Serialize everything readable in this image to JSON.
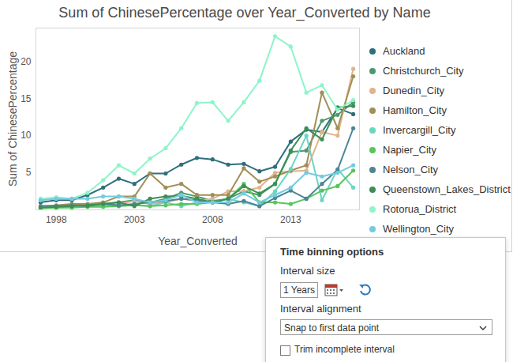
{
  "chart_data": {
    "type": "line",
    "title": "Sum of ChinesePercentage over Year_Converted by Name",
    "x_label": "Year_Converted",
    "y_label": "Sum of ChinesePercentage",
    "x": [
      1997,
      1998,
      1999,
      2000,
      2001,
      2002,
      2003,
      2004,
      2005,
      2006,
      2007,
      2008,
      2009,
      2010,
      2011,
      2012,
      2013,
      2014,
      2015,
      2016,
      2017
    ],
    "xlim": [
      1996.7,
      2017.4
    ],
    "xticks": [
      1998,
      2003,
      2008,
      2013
    ],
    "ylim": [
      0,
      24.5
    ],
    "yticks": [
      5,
      10,
      15,
      20
    ],
    "grid": false,
    "legend": "right",
    "marker": "circle",
    "series": [
      {
        "name": "Auckland",
        "color": "#2f6f7d",
        "values": [
          1.0,
          1.3,
          1.3,
          2.0,
          3.0,
          4.2,
          3.5,
          4.9,
          4.9,
          6.1,
          7.0,
          6.8,
          6.1,
          6.2,
          5.2,
          5.8,
          9.2,
          10.8,
          10.5,
          13.7,
          12.9
        ]
      },
      {
        "name": "Christchurch_City",
        "color": "#4b9a6e",
        "values": [
          0.3,
          0.5,
          0.5,
          0.7,
          0.8,
          1.0,
          1.3,
          1.0,
          1.5,
          2.3,
          1.8,
          1.2,
          1.5,
          2.5,
          2.0,
          3.5,
          7.8,
          8.0,
          12.0,
          12.8,
          14.5
        ]
      },
      {
        "name": "Dunedin_City",
        "color": "#e0b48c",
        "values": [
          0.3,
          0.3,
          0.5,
          0.6,
          0.5,
          0.8,
          1.2,
          0.8,
          1.0,
          1.5,
          1.2,
          1.5,
          2.5,
          2.5,
          3.0,
          5.0,
          5.2,
          5.3,
          10.5,
          10.0,
          19.0
        ]
      },
      {
        "name": "Hamilton_City",
        "color": "#a18f57",
        "values": [
          0.5,
          0.6,
          0.8,
          0.8,
          1.0,
          1.8,
          1.8,
          4.9,
          3.0,
          3.5,
          2.0,
          2.0,
          2.0,
          5.6,
          3.8,
          4.5,
          5.3,
          6.0,
          15.8,
          11.0,
          18.0
        ]
      },
      {
        "name": "Invercargill_City",
        "color": "#6ad6c2",
        "values": [
          0.3,
          0.3,
          0.4,
          0.5,
          0.5,
          0.5,
          0.7,
          0.5,
          1.0,
          0.5,
          1.0,
          1.0,
          1.5,
          1.0,
          0.5,
          2.5,
          5.5,
          10.0,
          1.3,
          5.5,
          3.0
        ]
      },
      {
        "name": "Napier_City",
        "color": "#57c55c",
        "values": [
          0.2,
          0.3,
          0.3,
          0.4,
          0.4,
          0.5,
          0.6,
          0.5,
          0.6,
          0.8,
          0.8,
          1.0,
          1.5,
          3.5,
          1.0,
          1.0,
          0.8,
          1.5,
          2.6,
          3.2,
          5.3
        ]
      },
      {
        "name": "Nelson_City",
        "color": "#4c8596",
        "values": [
          0.5,
          0.5,
          0.6,
          0.5,
          0.8,
          0.6,
          0.8,
          1.0,
          1.2,
          1.5,
          1.3,
          1.0,
          0.8,
          1.2,
          0.5,
          1.6,
          2.6,
          1.5,
          3.5,
          5.4,
          11.0
        ]
      },
      {
        "name": "Queenstown_Lakes_District",
        "color": "#3b8f55",
        "values": [
          0.3,
          0.4,
          0.5,
          0.6,
          0.8,
          1.0,
          0.5,
          1.5,
          1.8,
          1.9,
          1.5,
          1.0,
          1.5,
          3.2,
          2.2,
          3.5,
          8.0,
          11.0,
          9.5,
          13.8,
          14.0
        ]
      },
      {
        "name": "Rotorua_District",
        "color": "#8df5c9",
        "values": [
          1.5,
          1.7,
          1.5,
          2.3,
          4.0,
          6.0,
          4.9,
          6.9,
          8.3,
          11.0,
          14.4,
          14.5,
          12.0,
          14.5,
          17.4,
          23.4,
          22.0,
          15.8,
          16.8,
          13.5,
          14.8
        ]
      },
      {
        "name": "Wellington_City",
        "color": "#72cbe0",
        "values": [
          1.3,
          1.5,
          1.5,
          1.5,
          1.8,
          1.8,
          1.5,
          1.0,
          1.3,
          2.0,
          1.0,
          1.0,
          1.0,
          2.2,
          1.0,
          2.0,
          3.0,
          5.0,
          4.5,
          5.0,
          6.0
        ]
      }
    ]
  },
  "panel": {
    "title": "Time binning options",
    "interval_size_label": "Interval size",
    "interval_size": "1 Years",
    "interval_alignment_label": "Interval alignment",
    "interval_alignment": "Snap to first data point",
    "trim_label": "Trim incomplete interval",
    "trim_checked": false
  }
}
